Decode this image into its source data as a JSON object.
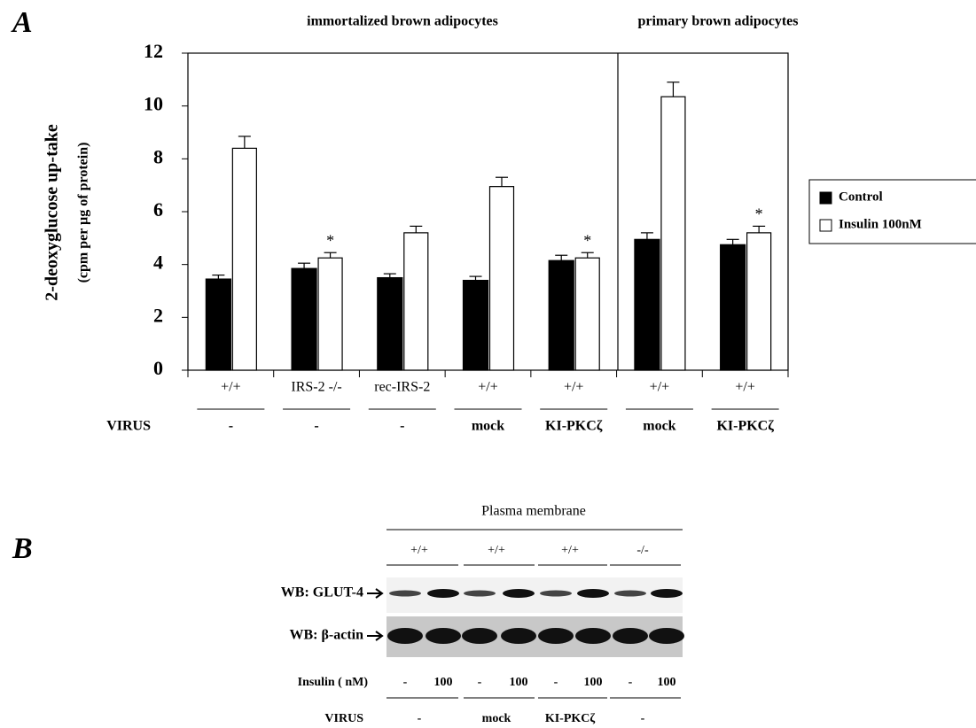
{
  "chart_data": {
    "type": "bar",
    "panel_label": "A",
    "group_headers": [
      "immortalized brown adipocytes",
      "primary brown adipocytes"
    ],
    "ylabel": "2-deoxyglucose up-take",
    "ylabel_sub": "(cpm per µg of protein)",
    "categories": [
      "+/+",
      "IRS-2 -/-",
      "rec-IRS-2",
      "+/+",
      "+/+",
      "+/+",
      "+/+"
    ],
    "row_label": "VIRUS",
    "virus": [
      "-",
      "-",
      "-",
      "mock",
      "KI-PKCζ",
      "mock",
      "KI-PKCζ"
    ],
    "series": [
      {
        "name": "Control",
        "color": "#000000",
        "values": [
          3.45,
          3.85,
          3.5,
          3.4,
          4.15,
          4.95,
          4.75
        ],
        "errors": [
          0.15,
          0.2,
          0.15,
          0.15,
          0.2,
          0.25,
          0.2
        ]
      },
      {
        "name": "Insulin 100nM",
        "color": "#ffffff",
        "values": [
          8.4,
          4.25,
          5.2,
          6.95,
          4.25,
          10.35,
          5.2
        ],
        "errors": [
          0.45,
          0.2,
          0.25,
          0.35,
          0.2,
          0.55,
          0.25
        ]
      }
    ],
    "annotations": [
      {
        "text": "*",
        "series": 1,
        "index": 1
      },
      {
        "text": "*",
        "series": 1,
        "index": 4
      },
      {
        "text": "*",
        "series": 1,
        "index": 6
      }
    ],
    "ylim": [
      0,
      12
    ],
    "yticks": [
      0,
      2,
      4,
      6,
      8,
      10,
      12
    ],
    "grid": false,
    "legend": "right"
  },
  "blot": {
    "panel_label": "B",
    "title": "Plasma membrane",
    "genotypes": [
      "+/+",
      "+/+",
      "+/+",
      "-/-"
    ],
    "rows": [
      "WB: GLUT-4",
      "WB: β-actin"
    ],
    "insulin_label": "Insulin ( nM)",
    "insulin": [
      "-",
      "100",
      "-",
      "100",
      "-",
      "100",
      "-",
      "100"
    ],
    "virus_label": "VIRUS",
    "virus": [
      "-",
      "mock",
      "KI-PKCζ",
      "-"
    ]
  }
}
